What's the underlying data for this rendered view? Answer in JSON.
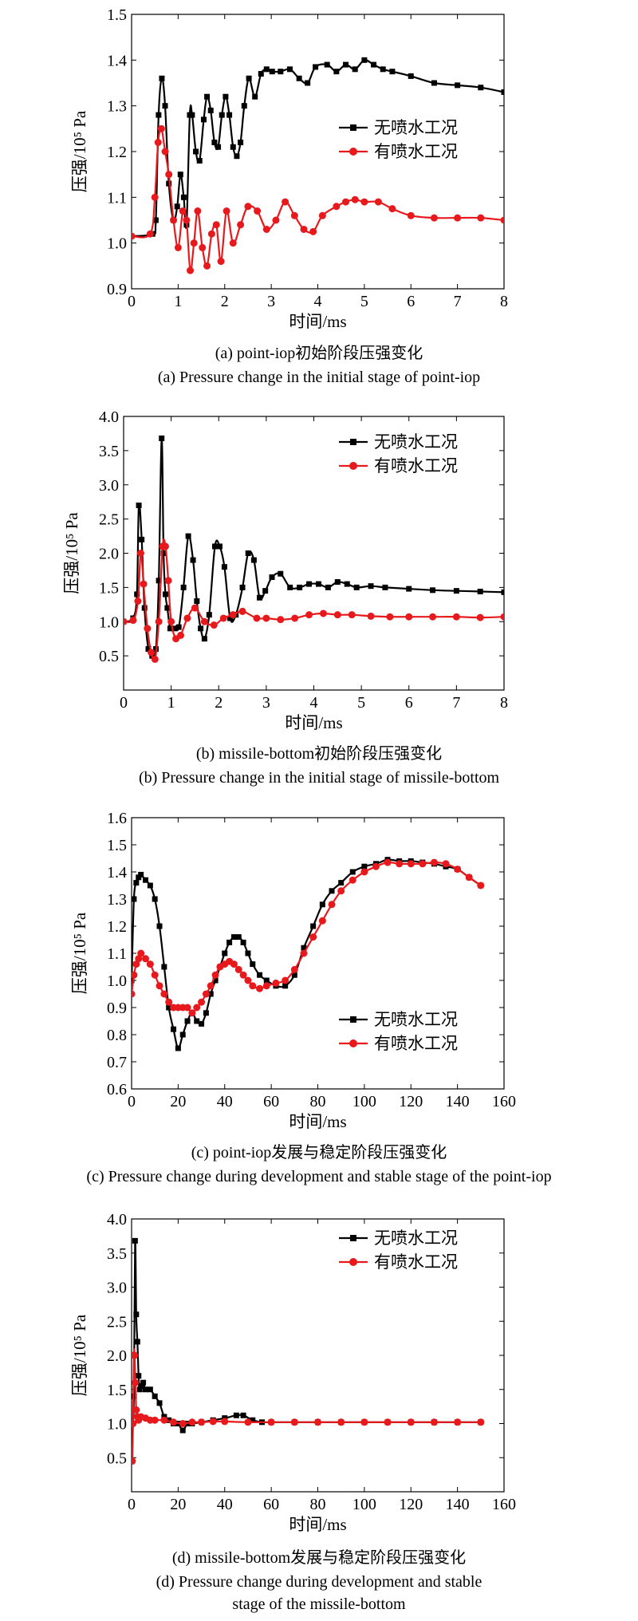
{
  "colors": {
    "no_spray": "#000000",
    "spray": "#e8191c"
  },
  "legend_no_spray": "无喷水工况",
  "legend_spray": "有喷水工况",
  "ylabel": "压强/10⁵ Pa",
  "xlabel": "时间/ms",
  "captions": {
    "a_cn": "(a) point-iop初始阶段压强变化",
    "a_en": "(a) Pressure change in the initial stage of point-iop",
    "b_cn": "(b) missile-bottom初始阶段压强变化",
    "b_en": "(b) Pressure change in the initial stage of missile-bottom",
    "c_cn": "(c) point-iop发展与稳定阶段压强变化",
    "c_en": "(c) Pressure change during development and stable stage of the point-iop",
    "d_cn": "(d) missile-bottom发展与稳定阶段压强变化",
    "d_en1": "(d) Pressure change during development and stable",
    "d_en2": "stage of the missile-bottom"
  },
  "chart_data": [
    {
      "type": "line",
      "xlabel": "时间/ms",
      "ylabel": "压强/10⁵ Pa",
      "xlim": [
        0,
        8
      ],
      "ylim": [
        0.9,
        1.5
      ],
      "xticks": [
        "0",
        "1",
        "2",
        "3",
        "4",
        "5",
        "6",
        "7",
        "8"
      ],
      "yticks": [
        "0.9",
        "1.0",
        "1.1",
        "1.2",
        "1.3",
        "1.4",
        "1.5"
      ],
      "legend": "right",
      "series": [
        {
          "name": "无喷水工况",
          "x": [
            0,
            0.45,
            0.52,
            0.58,
            0.65,
            0.72,
            0.8,
            0.9,
            0.98,
            1.05,
            1.12,
            1.18,
            1.25,
            1.3,
            1.38,
            1.46,
            1.55,
            1.62,
            1.7,
            1.78,
            1.86,
            1.94,
            2.02,
            2.1,
            2.18,
            2.26,
            2.34,
            2.42,
            2.52,
            2.65,
            2.78,
            2.9,
            3.02,
            3.2,
            3.4,
            3.6,
            3.78,
            3.95,
            4.2,
            4.4,
            4.6,
            4.8,
            5.0,
            5.2,
            5.4,
            5.6,
            6.0,
            6.5,
            7.0,
            7.5,
            8.0
          ],
          "y": [
            1.015,
            1.02,
            1.05,
            1.28,
            1.36,
            1.3,
            1.13,
            1.05,
            1.08,
            1.15,
            1.1,
            1.04,
            1.28,
            1.28,
            1.2,
            1.18,
            1.27,
            1.32,
            1.29,
            1.22,
            1.21,
            1.28,
            1.32,
            1.28,
            1.21,
            1.19,
            1.22,
            1.3,
            1.36,
            1.32,
            1.37,
            1.38,
            1.375,
            1.375,
            1.38,
            1.36,
            1.35,
            1.385,
            1.39,
            1.375,
            1.39,
            1.38,
            1.4,
            1.39,
            1.38,
            1.375,
            1.365,
            1.35,
            1.345,
            1.34,
            1.33
          ]
        },
        {
          "name": "有喷水工况",
          "x": [
            0,
            0.4,
            0.5,
            0.57,
            0.64,
            0.72,
            0.8,
            0.9,
            1.0,
            1.1,
            1.18,
            1.26,
            1.34,
            1.42,
            1.52,
            1.62,
            1.72,
            1.82,
            1.92,
            2.04,
            2.18,
            2.34,
            2.5,
            2.7,
            2.9,
            3.1,
            3.3,
            3.5,
            3.7,
            3.9,
            4.1,
            4.4,
            4.6,
            4.8,
            5.0,
            5.3,
            5.6,
            6.0,
            6.5,
            7.0,
            7.5,
            8.0
          ],
          "y": [
            1.015,
            1.02,
            1.1,
            1.22,
            1.25,
            1.2,
            1.15,
            1.05,
            0.99,
            1.07,
            1.05,
            0.94,
            1.0,
            1.07,
            0.99,
            0.95,
            1.02,
            1.04,
            0.96,
            1.07,
            1.0,
            1.04,
            1.08,
            1.07,
            1.03,
            1.05,
            1.09,
            1.06,
            1.03,
            1.025,
            1.06,
            1.08,
            1.09,
            1.095,
            1.09,
            1.09,
            1.075,
            1.06,
            1.055,
            1.055,
            1.055,
            1.05
          ]
        }
      ]
    },
    {
      "type": "line",
      "xlabel": "时间/ms",
      "ylabel": "压强/10⁵ Pa",
      "xlim": [
        0,
        8
      ],
      "ylim": [
        0,
        4.0
      ],
      "xticks": [
        "0",
        "1",
        "2",
        "3",
        "4",
        "5",
        "6",
        "7",
        "8"
      ],
      "yticks": [
        "0.5",
        "1.0",
        "1.5",
        "2.0",
        "2.5",
        "3.0",
        "3.5",
        "4.0"
      ],
      "legend": "top-right",
      "series": [
        {
          "name": "无喷水工况",
          "x": [
            0,
            0.2,
            0.28,
            0.32,
            0.38,
            0.44,
            0.52,
            0.6,
            0.68,
            0.74,
            0.8,
            0.84,
            0.88,
            0.92,
            0.98,
            1.06,
            1.16,
            1.26,
            1.36,
            1.46,
            1.54,
            1.62,
            1.7,
            1.8,
            1.92,
            2.02,
            2.12,
            2.24,
            2.36,
            2.5,
            2.62,
            2.74,
            2.86,
            2.98,
            3.12,
            3.3,
            3.5,
            3.7,
            3.9,
            4.1,
            4.3,
            4.5,
            4.7,
            4.9,
            5.2,
            5.5,
            6.0,
            6.5,
            7.0,
            7.5,
            8.0
          ],
          "y": [
            1.0,
            1.05,
            1.4,
            2.7,
            2.2,
            1.2,
            0.6,
            0.5,
            0.6,
            1.6,
            3.68,
            2.0,
            1.4,
            1.2,
            0.9,
            0.9,
            0.92,
            1.5,
            2.25,
            1.9,
            1.3,
            0.9,
            0.75,
            1.1,
            2.1,
            2.1,
            1.8,
            1.05,
            1.1,
            1.5,
            2.0,
            1.9,
            1.35,
            1.45,
            1.65,
            1.7,
            1.5,
            1.5,
            1.55,
            1.55,
            1.5,
            1.58,
            1.55,
            1.5,
            1.52,
            1.5,
            1.48,
            1.46,
            1.45,
            1.44,
            1.43
          ]
        },
        {
          "name": "有喷水工况",
          "x": [
            0,
            0.2,
            0.3,
            0.36,
            0.42,
            0.5,
            0.58,
            0.66,
            0.74,
            0.82,
            0.88,
            0.94,
            1.0,
            1.1,
            1.2,
            1.34,
            1.5,
            1.7,
            1.9,
            2.1,
            2.3,
            2.5,
            2.8,
            3.0,
            3.3,
            3.6,
            3.9,
            4.2,
            4.5,
            4.8,
            5.2,
            5.6,
            6.0,
            6.5,
            7.0,
            7.5,
            8.0
          ],
          "y": [
            1.0,
            1.02,
            1.3,
            2.0,
            1.55,
            0.9,
            0.55,
            0.45,
            1.0,
            2.1,
            2.1,
            1.6,
            1.0,
            0.75,
            0.8,
            1.05,
            1.2,
            1.0,
            0.95,
            1.05,
            1.1,
            1.15,
            1.05,
            1.05,
            1.03,
            1.05,
            1.1,
            1.12,
            1.1,
            1.1,
            1.08,
            1.07,
            1.07,
            1.07,
            1.07,
            1.06,
            1.07
          ]
        }
      ]
    },
    {
      "type": "line",
      "xlabel": "时间/ms",
      "ylabel": "压强/10⁵ Pa",
      "xlim": [
        0,
        160
      ],
      "ylim": [
        0.6,
        1.6
      ],
      "xticks": [
        "0",
        "20",
        "40",
        "60",
        "80",
        "100",
        "120",
        "140",
        "160"
      ],
      "yticks": [
        "0.6",
        "0.7",
        "0.8",
        "0.9",
        "1.0",
        "1.1",
        "1.2",
        "1.3",
        "1.4",
        "1.5",
        "1.6"
      ],
      "legend": "bottom-right",
      "series": [
        {
          "name": "无喷水工况",
          "x": [
            0,
            1,
            2,
            3,
            4,
            6,
            8,
            10,
            12,
            14,
            16,
            18,
            20,
            22,
            24,
            26,
            28,
            30,
            32,
            34,
            36,
            38,
            40,
            42,
            44,
            46,
            48,
            50,
            52,
            55,
            58,
            62,
            66,
            70,
            74,
            78,
            82,
            86,
            90,
            95,
            100,
            105,
            110,
            115,
            120,
            125,
            130,
            135,
            140,
            145,
            150
          ],
          "y": [
            1.0,
            1.3,
            1.36,
            1.38,
            1.39,
            1.37,
            1.35,
            1.3,
            1.2,
            1.05,
            0.9,
            0.82,
            0.75,
            0.8,
            0.85,
            0.88,
            0.85,
            0.84,
            0.88,
            0.95,
            1.0,
            1.05,
            1.1,
            1.14,
            1.16,
            1.16,
            1.14,
            1.1,
            1.06,
            1.02,
            1.0,
            0.98,
            0.98,
            1.02,
            1.12,
            1.2,
            1.28,
            1.33,
            1.36,
            1.4,
            1.42,
            1.43,
            1.445,
            1.44,
            1.44,
            1.435,
            1.43,
            1.42,
            1.41,
            1.38,
            1.35
          ]
        },
        {
          "name": "有喷水工况",
          "x": [
            0,
            1,
            2,
            3,
            4,
            6,
            8,
            10,
            12,
            14,
            16,
            18,
            20,
            22,
            24,
            26,
            28,
            30,
            32,
            34,
            36,
            38,
            40,
            42,
            44,
            46,
            48,
            50,
            52,
            55,
            58,
            62,
            66,
            70,
            74,
            78,
            82,
            86,
            90,
            95,
            100,
            105,
            110,
            115,
            120,
            125,
            130,
            135,
            140,
            145,
            150
          ],
          "y": [
            0.95,
            1.02,
            1.06,
            1.08,
            1.1,
            1.08,
            1.06,
            1.02,
            0.98,
            0.95,
            0.92,
            0.9,
            0.9,
            0.9,
            0.9,
            0.88,
            0.9,
            0.92,
            0.95,
            0.98,
            1.02,
            1.05,
            1.06,
            1.07,
            1.06,
            1.04,
            1.02,
            1.0,
            0.98,
            0.97,
            0.98,
            0.99,
            1.0,
            1.04,
            1.1,
            1.16,
            1.22,
            1.28,
            1.33,
            1.37,
            1.4,
            1.42,
            1.435,
            1.43,
            1.43,
            1.43,
            1.435,
            1.43,
            1.41,
            1.38,
            1.35
          ]
        }
      ]
    },
    {
      "type": "line",
      "xlabel": "时间/ms",
      "ylabel": "压强/10⁵ Pa",
      "xlim": [
        0,
        160
      ],
      "ylim": [
        0,
        4.0
      ],
      "xticks": [
        "0",
        "20",
        "40",
        "60",
        "80",
        "100",
        "120",
        "140",
        "160"
      ],
      "yticks": [
        "0.5",
        "1.0",
        "1.5",
        "2.0",
        "2.5",
        "3.0",
        "3.5",
        "4.0"
      ],
      "legend": "top-right",
      "series": [
        {
          "name": "无喷水工况",
          "x": [
            0.5,
            1.0,
            1.5,
            2.0,
            2.5,
            3.0,
            3.5,
            4.0,
            5.0,
            6.0,
            8.0,
            10.0,
            12.0,
            14.0,
            16.0,
            18.0,
            20.0,
            22.0,
            24.0,
            26.0,
            30.0,
            35.0,
            40.0,
            45.0,
            48.0,
            52.0,
            56.0,
            60.0,
            70.0,
            80.0,
            90.0,
            100.0,
            110.0,
            120.0,
            130.0,
            140.0,
            150.0
          ],
          "y": [
            1.0,
            1.4,
            3.68,
            2.6,
            2.2,
            1.7,
            1.5,
            1.55,
            1.6,
            1.5,
            1.5,
            1.4,
            1.3,
            1.1,
            1.05,
            1.0,
            1.0,
            0.9,
            1.0,
            1.0,
            1.02,
            1.05,
            1.08,
            1.12,
            1.12,
            1.05,
            1.02,
            1.02,
            1.02,
            1.02,
            1.02,
            1.02,
            1.02,
            1.02,
            1.02,
            1.02,
            1.02
          ]
        },
        {
          "name": "有喷水工况",
          "x": [
            0.3,
            0.6,
            1.0,
            1.3,
            1.6,
            2.0,
            2.5,
            3.0,
            4.0,
            6.0,
            8.0,
            10.0,
            14.0,
            18.0,
            22.0,
            26.0,
            30.0,
            35.0,
            40.0,
            50.0,
            60.0,
            70.0,
            80.0,
            90.0,
            100.0,
            110.0,
            120.0,
            130.0,
            140.0,
            150.0
          ],
          "y": [
            0.45,
            1.0,
            2.0,
            2.0,
            1.6,
            1.2,
            1.1,
            1.05,
            1.1,
            1.08,
            1.05,
            1.05,
            1.05,
            1.02,
            1.0,
            1.02,
            1.02,
            1.03,
            1.03,
            1.02,
            1.02,
            1.02,
            1.02,
            1.02,
            1.02,
            1.02,
            1.02,
            1.02,
            1.02,
            1.02
          ]
        }
      ]
    }
  ]
}
